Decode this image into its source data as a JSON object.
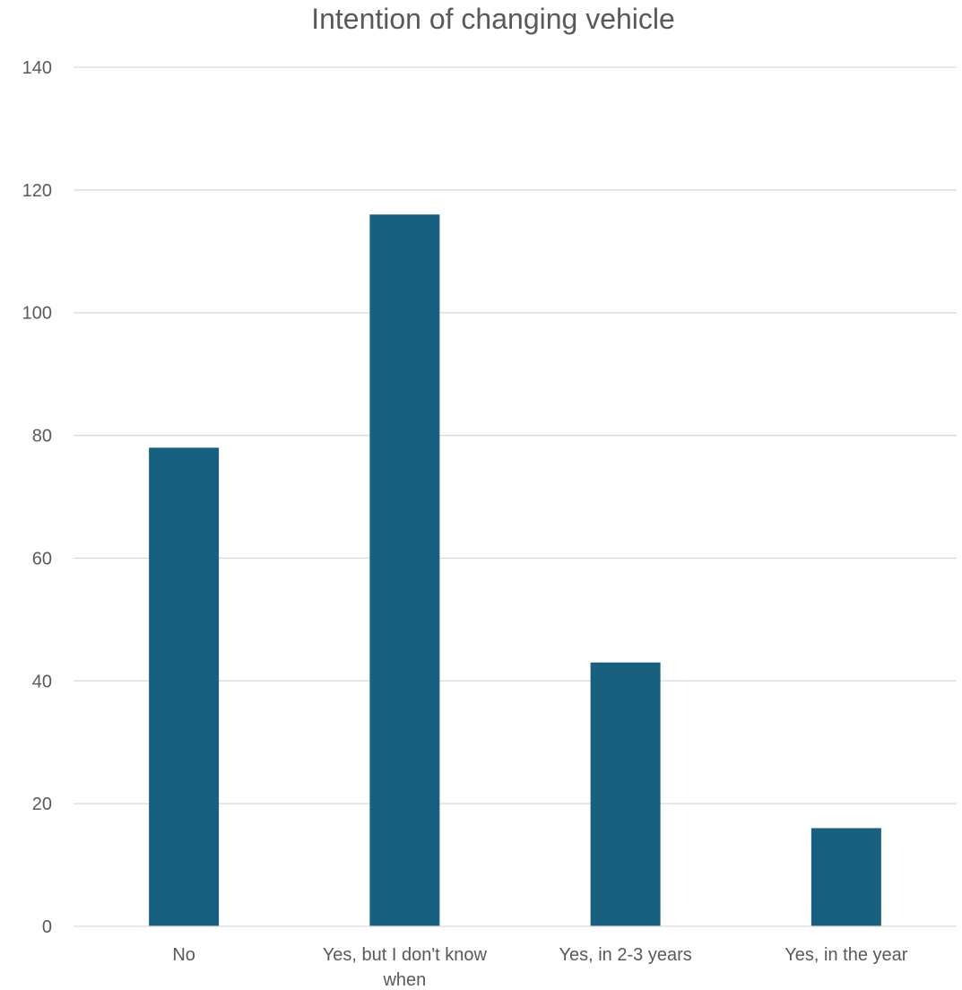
{
  "chart_data": {
    "type": "bar",
    "title": "Intention of changing vehicle",
    "xlabel": "",
    "ylabel": "",
    "categories": [
      "No",
      "Yes, but I don't know when",
      "Yes, in 2-3 years",
      "Yes, in the year"
    ],
    "category_label_lines": [
      [
        "No"
      ],
      [
        "Yes, but I don't know",
        "when"
      ],
      [
        "Yes, in 2-3 years"
      ],
      [
        "Yes, in the year"
      ]
    ],
    "values": [
      78,
      116,
      43,
      16
    ],
    "ylim": [
      0,
      140
    ],
    "yticks": [
      0,
      20,
      40,
      60,
      80,
      100,
      120,
      140
    ],
    "grid": true,
    "legend": "none",
    "bar_color": "#17607f",
    "grid_color": "#d9d9d9",
    "text_color": "#595959"
  }
}
